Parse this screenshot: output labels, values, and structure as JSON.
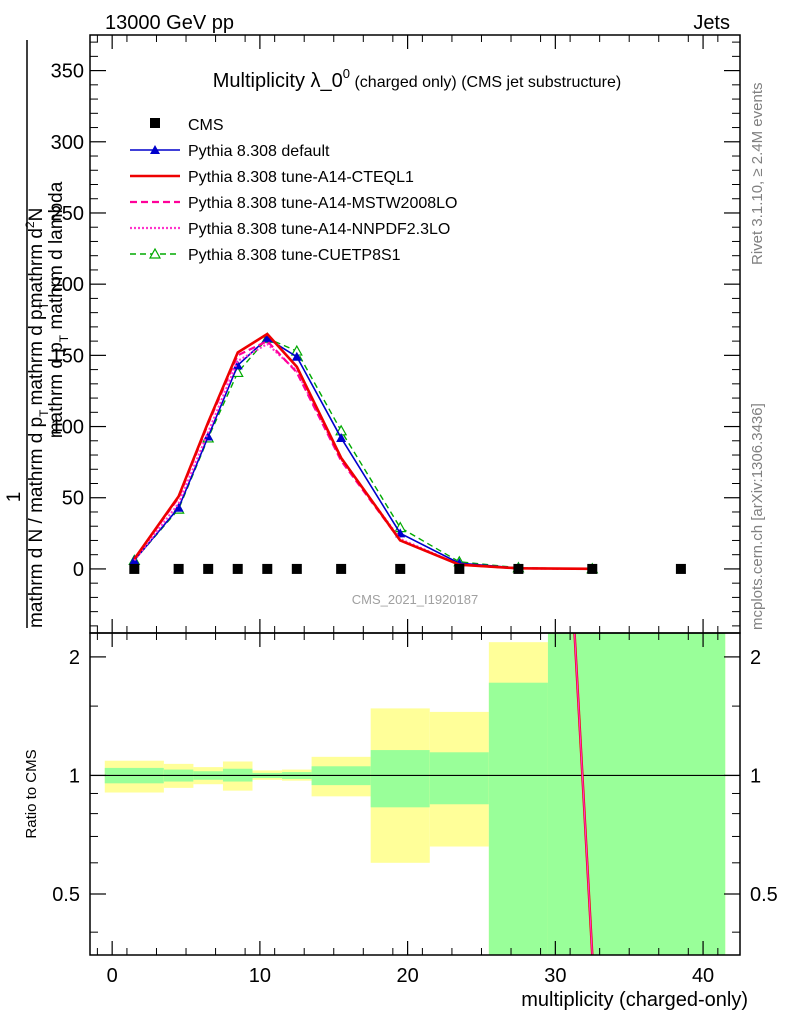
{
  "header": {
    "left": "13000 GeV pp",
    "right": "Jets"
  },
  "side_labels": {
    "rivet": "Rivet 3.1.10, ≥ 2.4M events",
    "mcplots": "mcplots.cern.ch [arXiv:1306.3436]"
  },
  "chart_data": {
    "type": "line",
    "title": "Multiplicity λ_0^0 (charged only) (CMS jet substructure)",
    "title_parts": {
      "main": "Multiplicity λ_0",
      "sup": "0",
      "rest": " (charged only) (CMS jet substructure)"
    },
    "analysis_id": "CMS_2021_I1920187",
    "xlabel": "multiplicity (charged-only)",
    "ylabel": "1 / mathrm d N / mathrm d p_T mathrm d p_T mathrm d lambda  mathrm d^2N",
    "ylabel_parts": {
      "num_a": "mathrm d",
      "num_sup": "2",
      "num_b": "N",
      "den_a": "mathrm d p",
      "den_sub": "T",
      "den_b": " mathrm d lambda",
      "one": "1",
      "low_a": "mathrm d N / mathrm d p",
      "low_sub": "T",
      "low_b": "mathrm d p",
      "low_sub2": "T"
    },
    "ratio_ylabel": "Ratio to CMS",
    "xlim": [
      -1.5,
      42.5
    ],
    "ylim": [
      -45,
      375
    ],
    "ratio_ylim": [
      0.35,
      2.3
    ],
    "x_ticks": [
      0,
      10,
      20,
      30,
      40
    ],
    "y_ticks": [
      0,
      50,
      100,
      150,
      200,
      250,
      300,
      350
    ],
    "ratio_ticks": [
      0.5,
      1,
      2
    ],
    "ratio_tick_labels": [
      "0.5",
      "1",
      "2"
    ],
    "legend": [
      {
        "key": "cms",
        "label": "CMS"
      },
      {
        "key": "default",
        "label": "Pythia 8.308 default"
      },
      {
        "key": "cteql1",
        "label": "Pythia 8.308 tune-A14-CTEQL1"
      },
      {
        "key": "mstw",
        "label": "Pythia 8.308 tune-A14-MSTW2008LO"
      },
      {
        "key": "nnpdf",
        "label": "Pythia 8.308 tune-A14-NNPDF2.3LO"
      },
      {
        "key": "cuetp",
        "label": "Pythia 8.308 tune-CUETP8S1"
      }
    ],
    "data_points": {
      "x": [
        1.5,
        4.5,
        6.5,
        8.5,
        10.5,
        12.5,
        15.5,
        19.5,
        23.5,
        27.5,
        32.5,
        38.5
      ],
      "y": [
        0,
        0,
        0,
        0,
        0,
        0,
        0,
        0,
        0,
        0,
        0,
        0
      ]
    },
    "series": [
      {
        "key": "default",
        "name": "Pythia 8.308 default",
        "color": "#0000cc",
        "x": [
          1.5,
          4.5,
          6.5,
          8.5,
          10.5,
          12.5,
          15.5,
          19.5,
          23.5,
          27.5,
          32.5
        ],
        "values": [
          6,
          43,
          93,
          143,
          162,
          149,
          92,
          25,
          4,
          0.6,
          0.1
        ]
      },
      {
        "key": "cteql1",
        "name": "Pythia 8.308 tune-A14-CTEQL1",
        "color": "#ee0000",
        "x": [
          1.5,
          4.5,
          6.5,
          8.5,
          10.5,
          12.5,
          15.5,
          19.5,
          23.5,
          27.5,
          32.5
        ],
        "values": [
          7,
          51,
          103,
          152,
          165,
          142,
          78,
          20,
          3,
          0.4,
          0.05
        ]
      },
      {
        "key": "mstw",
        "name": "Pythia 8.308 tune-A14-MSTW2008LO",
        "color": "#ff0099",
        "x": [
          1.5,
          4.5,
          6.5,
          8.5,
          10.5,
          12.5,
          15.5,
          19.5,
          23.5,
          27.5,
          32.5
        ],
        "values": [
          7,
          50,
          102,
          150,
          160,
          138,
          76,
          20,
          3,
          0.4,
          0.05
        ]
      },
      {
        "key": "nnpdf",
        "name": "Pythia 8.308 tune-A14-NNPDF2.3LO",
        "color": "#ff33cc",
        "x": [
          1.5,
          4.5,
          6.5,
          8.5,
          10.5,
          12.5,
          15.5,
          19.5,
          23.5,
          27.5,
          32.5
        ],
        "values": [
          6,
          46,
          96,
          146,
          158,
          139,
          77,
          21,
          3,
          0.4,
          0.05
        ]
      },
      {
        "key": "cuetp",
        "name": "Pythia 8.308 tune-CUETP8S1",
        "color": "#00aa00",
        "x": [
          1.5,
          4.5,
          6.5,
          8.5,
          10.5,
          12.5,
          15.5,
          19.5,
          23.5,
          27.5,
          32.5
        ],
        "values": [
          6,
          42,
          92,
          138,
          162,
          153,
          97,
          29,
          5,
          0.8,
          0.1
        ]
      }
    ],
    "ratio_bands": [
      {
        "x0": -0.5,
        "x1": 3.5,
        "g": [
          0.955,
          1.045
        ],
        "y": [
          0.905,
          1.09
        ]
      },
      {
        "x0": 3.5,
        "x1": 5.5,
        "g": [
          0.965,
          1.035
        ],
        "y": [
          0.93,
          1.07
        ]
      },
      {
        "x0": 5.5,
        "x1": 7.5,
        "g": [
          0.975,
          1.025
        ],
        "y": [
          0.95,
          1.05
        ]
      },
      {
        "x0": 7.5,
        "x1": 9.5,
        "g": [
          0.965,
          1.04
        ],
        "y": [
          0.915,
          1.085
        ]
      },
      {
        "x0": 9.5,
        "x1": 11.5,
        "g": [
          0.985,
          1.015
        ],
        "y": [
          0.975,
          1.03
        ]
      },
      {
        "x0": 11.5,
        "x1": 13.5,
        "g": [
          0.98,
          1.02
        ],
        "y": [
          0.97,
          1.035
        ]
      },
      {
        "x0": 13.5,
        "x1": 17.5,
        "g": [
          0.945,
          1.055
        ],
        "y": [
          0.885,
          1.115
        ]
      },
      {
        "x0": 17.5,
        "x1": 21.5,
        "g": [
          0.83,
          1.16
        ],
        "y": [
          0.6,
          1.48
        ]
      },
      {
        "x0": 21.5,
        "x1": 25.5,
        "g": [
          0.845,
          1.145
        ],
        "y": [
          0.66,
          1.45
        ]
      },
      {
        "x0": 25.5,
        "x1": 29.5,
        "g": [
          0.35,
          1.72
        ],
        "y": [
          0.35,
          2.18
        ]
      },
      {
        "x0": 29.5,
        "x1": 41.5,
        "g": [
          0.35,
          2.3
        ],
        "y": [
          0.35,
          2.3
        ]
      }
    ],
    "ratio_curve": {
      "x": [
        31.3,
        32.5
      ],
      "y": [
        2.3,
        0.35
      ]
    },
    "colors": {
      "cms": "#000000",
      "band_inner": "#99ff99",
      "band_outer": "#ffff99",
      "ratio_line": "#ee0000",
      "ratio_line_over": "#ff33cc"
    }
  }
}
